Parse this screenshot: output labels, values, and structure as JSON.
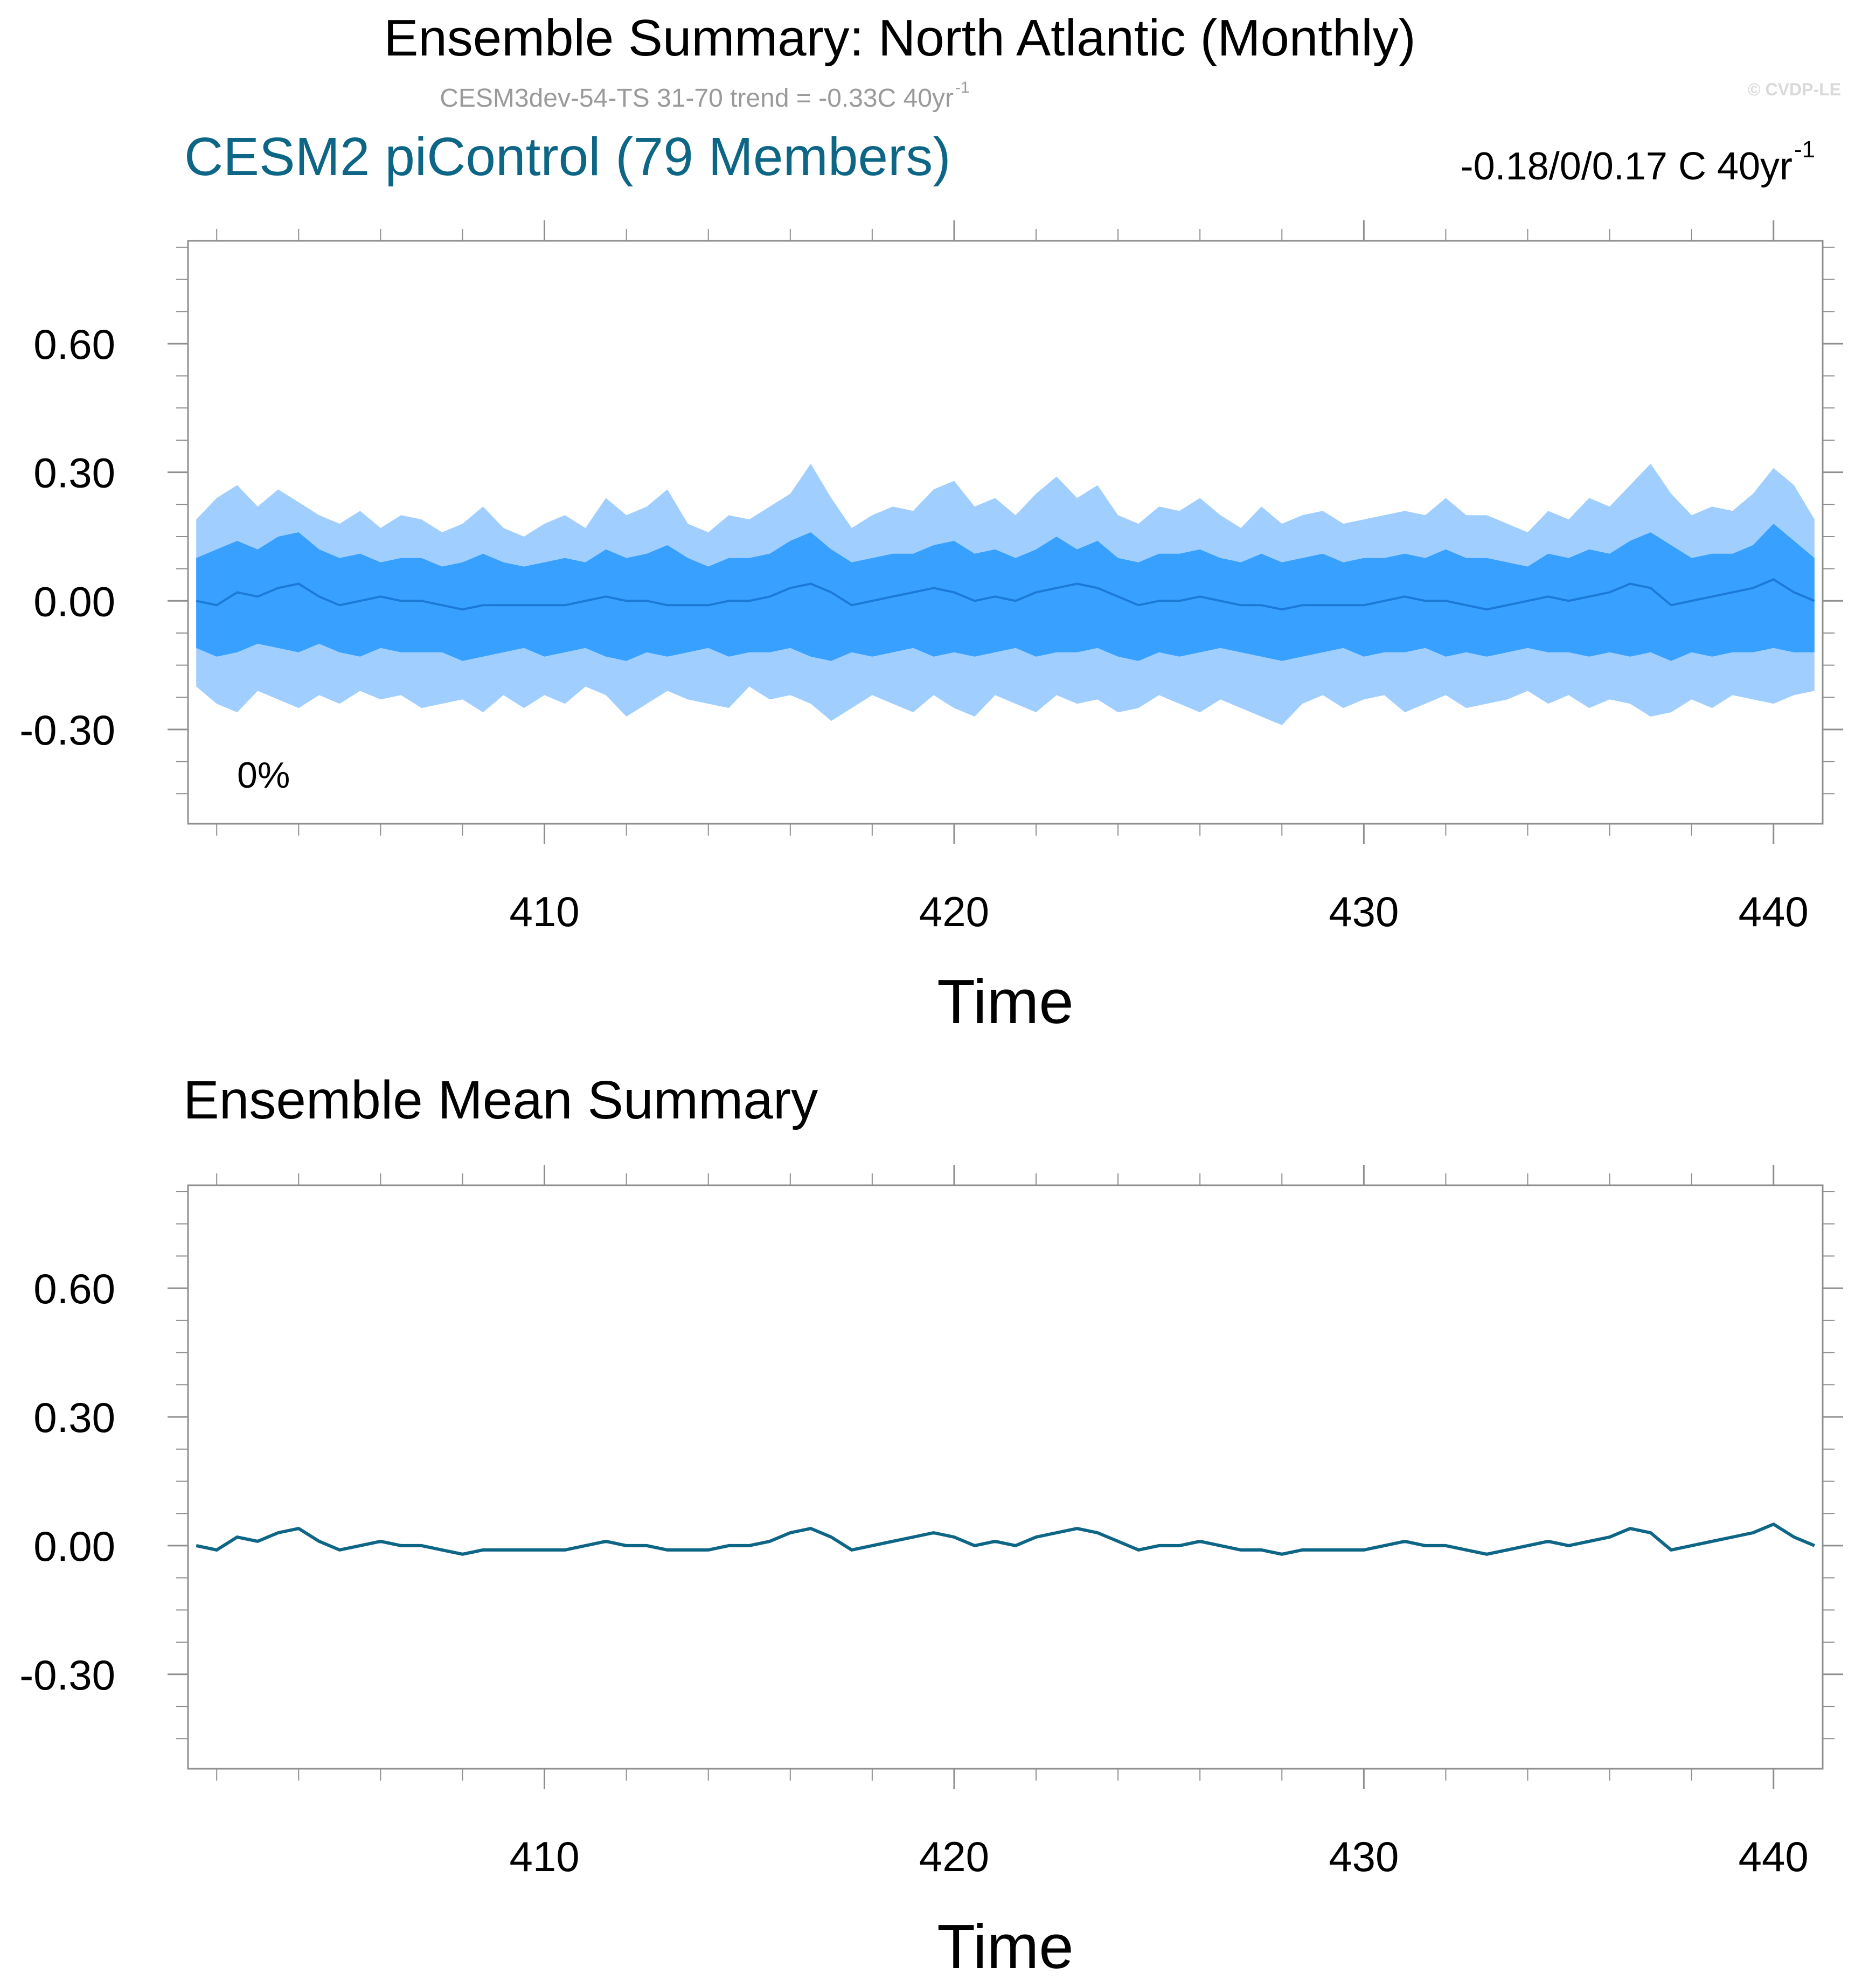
{
  "header": {
    "title": "Ensemble Summary: North Atlantic (Monthly)",
    "subtitle_main": "CESM3dev-54-TS 31-70 trend = -0.33C 40yr",
    "subtitle_sup": "-1",
    "watermark": "© CVDP-LE"
  },
  "panel_top": {
    "left_title": "CESM2 piControl (79 Members)",
    "right_title_main": "-0.18/0/0.17 C 40yr",
    "right_title_sup": "-1",
    "percent_label": "0%"
  },
  "panel_bottom": {
    "left_title": "Ensemble Mean Summary"
  },
  "colors": {
    "outer_band": "#a0cfff",
    "inner_band": "#38a0ff",
    "top_mean_line": "#1a7ad6",
    "mean_line": "#0e6686",
    "title_accent": "#0e6686",
    "subtitle_gray": "#9a9a9a",
    "axis": "#8f8f8f"
  },
  "chart_data": [
    {
      "type": "area",
      "title": "CESM2 piControl (79 Members)",
      "xlabel": "Time",
      "ylabel": "",
      "xlim": [
        401.3,
        441.2
      ],
      "ylim": [
        -0.52,
        0.84
      ],
      "xticks": [
        410,
        420,
        430,
        440
      ],
      "xtick_labels": [
        "410",
        "420",
        "430",
        "440"
      ],
      "yticks": [
        -0.3,
        0,
        0.3,
        0.6
      ],
      "ytick_labels": [
        "-0.30",
        "0.00",
        "0.30",
        "0.60"
      ],
      "grid": false,
      "x": [
        401.5,
        402,
        402.5,
        403,
        403.5,
        404,
        404.5,
        405,
        405.5,
        406,
        406.5,
        407,
        407.5,
        408,
        408.5,
        409,
        409.5,
        410,
        410.5,
        411,
        411.5,
        412,
        412.5,
        413,
        413.5,
        414,
        414.5,
        415,
        415.5,
        416,
        416.5,
        417,
        417.5,
        418,
        418.5,
        419,
        419.5,
        420,
        420.5,
        421,
        421.5,
        422,
        422.5,
        423,
        423.5,
        424,
        424.5,
        425,
        425.5,
        426,
        426.5,
        427,
        427.5,
        428,
        428.5,
        429,
        429.5,
        430,
        430.5,
        431,
        431.5,
        432,
        432.5,
        433,
        433.5,
        434,
        434.5,
        435,
        435.5,
        436,
        436.5,
        437,
        437.5,
        438,
        438.5,
        439,
        439.5,
        440,
        440.5,
        441
      ],
      "series": [
        {
          "role": "upper_outer",
          "values": [
            0.19,
            0.24,
            0.27,
            0.22,
            0.26,
            0.23,
            0.2,
            0.18,
            0.21,
            0.17,
            0.2,
            0.19,
            0.16,
            0.18,
            0.22,
            0.17,
            0.15,
            0.18,
            0.2,
            0.17,
            0.24,
            0.2,
            0.22,
            0.26,
            0.18,
            0.16,
            0.2,
            0.19,
            0.22,
            0.25,
            0.32,
            0.24,
            0.17,
            0.2,
            0.22,
            0.21,
            0.26,
            0.28,
            0.22,
            0.24,
            0.2,
            0.25,
            0.29,
            0.24,
            0.27,
            0.2,
            0.18,
            0.22,
            0.21,
            0.24,
            0.2,
            0.17,
            0.22,
            0.18,
            0.2,
            0.21,
            0.18,
            0.19,
            0.2,
            0.21,
            0.2,
            0.24,
            0.2,
            0.2,
            0.18,
            0.16,
            0.21,
            0.19,
            0.24,
            0.22,
            0.27,
            0.32,
            0.25,
            0.2,
            0.22,
            0.21,
            0.25,
            0.31,
            0.27,
            0.19
          ]
        },
        {
          "role": "upper_inner",
          "values": [
            0.1,
            0.12,
            0.14,
            0.12,
            0.15,
            0.16,
            0.12,
            0.1,
            0.11,
            0.09,
            0.1,
            0.1,
            0.08,
            0.09,
            0.11,
            0.09,
            0.08,
            0.09,
            0.1,
            0.09,
            0.12,
            0.1,
            0.11,
            0.13,
            0.1,
            0.08,
            0.1,
            0.1,
            0.11,
            0.14,
            0.16,
            0.12,
            0.09,
            0.1,
            0.11,
            0.11,
            0.13,
            0.14,
            0.11,
            0.12,
            0.1,
            0.12,
            0.15,
            0.12,
            0.14,
            0.1,
            0.09,
            0.11,
            0.11,
            0.12,
            0.1,
            0.09,
            0.11,
            0.09,
            0.1,
            0.11,
            0.09,
            0.1,
            0.1,
            0.11,
            0.1,
            0.12,
            0.1,
            0.1,
            0.09,
            0.08,
            0.11,
            0.1,
            0.12,
            0.11,
            0.14,
            0.16,
            0.13,
            0.1,
            0.11,
            0.11,
            0.13,
            0.18,
            0.14,
            0.1
          ]
        },
        {
          "role": "ensemble_mean",
          "values": [
            0.0,
            -0.01,
            0.02,
            0.01,
            0.03,
            0.04,
            0.01,
            -0.01,
            0.0,
            0.01,
            0.0,
            0.0,
            -0.01,
            -0.02,
            -0.01,
            -0.01,
            -0.01,
            -0.01,
            -0.01,
            0.0,
            0.01,
            0.0,
            0.0,
            -0.01,
            -0.01,
            -0.01,
            0.0,
            0.0,
            0.01,
            0.03,
            0.04,
            0.02,
            -0.01,
            0.0,
            0.01,
            0.02,
            0.03,
            0.02,
            0.0,
            0.01,
            0.0,
            0.02,
            0.03,
            0.04,
            0.03,
            0.01,
            -0.01,
            0.0,
            0.0,
            0.01,
            0.0,
            -0.01,
            -0.01,
            -0.02,
            -0.01,
            -0.01,
            -0.01,
            -0.01,
            0.0,
            0.01,
            0.0,
            0.0,
            -0.01,
            -0.02,
            -0.01,
            0.0,
            0.01,
            0.0,
            0.01,
            0.02,
            0.04,
            0.03,
            -0.01,
            0.0,
            0.01,
            0.02,
            0.03,
            0.05,
            0.02,
            0.0
          ]
        },
        {
          "role": "lower_inner",
          "values": [
            -0.11,
            -0.13,
            -0.12,
            -0.1,
            -0.11,
            -0.12,
            -0.1,
            -0.12,
            -0.13,
            -0.11,
            -0.12,
            -0.12,
            -0.12,
            -0.14,
            -0.13,
            -0.12,
            -0.11,
            -0.13,
            -0.12,
            -0.11,
            -0.13,
            -0.14,
            -0.12,
            -0.13,
            -0.12,
            -0.11,
            -0.13,
            -0.12,
            -0.12,
            -0.11,
            -0.13,
            -0.14,
            -0.12,
            -0.13,
            -0.12,
            -0.11,
            -0.13,
            -0.12,
            -0.13,
            -0.12,
            -0.11,
            -0.13,
            -0.12,
            -0.12,
            -0.11,
            -0.13,
            -0.14,
            -0.12,
            -0.13,
            -0.12,
            -0.11,
            -0.12,
            -0.13,
            -0.14,
            -0.13,
            -0.12,
            -0.11,
            -0.13,
            -0.12,
            -0.12,
            -0.11,
            -0.13,
            -0.12,
            -0.13,
            -0.12,
            -0.11,
            -0.12,
            -0.12,
            -0.13,
            -0.12,
            -0.13,
            -0.12,
            -0.14,
            -0.12,
            -0.13,
            -0.12,
            -0.12,
            -0.11,
            -0.12,
            -0.12
          ]
        },
        {
          "role": "lower_outer",
          "values": [
            -0.2,
            -0.24,
            -0.26,
            -0.21,
            -0.23,
            -0.25,
            -0.22,
            -0.24,
            -0.21,
            -0.23,
            -0.22,
            -0.25,
            -0.24,
            -0.23,
            -0.26,
            -0.22,
            -0.25,
            -0.22,
            -0.24,
            -0.2,
            -0.22,
            -0.27,
            -0.24,
            -0.21,
            -0.23,
            -0.24,
            -0.25,
            -0.2,
            -0.23,
            -0.22,
            -0.24,
            -0.28,
            -0.25,
            -0.22,
            -0.24,
            -0.26,
            -0.22,
            -0.25,
            -0.27,
            -0.22,
            -0.24,
            -0.26,
            -0.22,
            -0.24,
            -0.23,
            -0.26,
            -0.25,
            -0.22,
            -0.24,
            -0.26,
            -0.23,
            -0.25,
            -0.27,
            -0.29,
            -0.24,
            -0.22,
            -0.25,
            -0.23,
            -0.22,
            -0.26,
            -0.24,
            -0.22,
            -0.25,
            -0.24,
            -0.23,
            -0.21,
            -0.24,
            -0.22,
            -0.25,
            -0.23,
            -0.24,
            -0.27,
            -0.26,
            -0.23,
            -0.25,
            -0.22,
            -0.23,
            -0.24,
            -0.22,
            -0.21
          ]
        }
      ]
    },
    {
      "type": "line",
      "title": "Ensemble Mean Summary",
      "xlabel": "Time",
      "ylabel": "",
      "xlim": [
        401.3,
        441.2
      ],
      "ylim": [
        -0.52,
        0.84
      ],
      "xticks": [
        410,
        420,
        430,
        440
      ],
      "xtick_labels": [
        "410",
        "420",
        "430",
        "440"
      ],
      "yticks": [
        -0.3,
        0,
        0.3,
        0.6
      ],
      "ytick_labels": [
        "-0.30",
        "0.00",
        "0.30",
        "0.60"
      ],
      "grid": false,
      "x": [
        401.5,
        402,
        402.5,
        403,
        403.5,
        404,
        404.5,
        405,
        405.5,
        406,
        406.5,
        407,
        407.5,
        408,
        408.5,
        409,
        409.5,
        410,
        410.5,
        411,
        411.5,
        412,
        412.5,
        413,
        413.5,
        414,
        414.5,
        415,
        415.5,
        416,
        416.5,
        417,
        417.5,
        418,
        418.5,
        419,
        419.5,
        420,
        420.5,
        421,
        421.5,
        422,
        422.5,
        423,
        423.5,
        424,
        424.5,
        425,
        425.5,
        426,
        426.5,
        427,
        427.5,
        428,
        428.5,
        429,
        429.5,
        430,
        430.5,
        431,
        431.5,
        432,
        432.5,
        433,
        433.5,
        434,
        434.5,
        435,
        435.5,
        436,
        436.5,
        437,
        437.5,
        438,
        438.5,
        439,
        439.5,
        440,
        440.5,
        441
      ],
      "series": [
        {
          "role": "ensemble_mean",
          "values": [
            0.0,
            -0.01,
            0.02,
            0.01,
            0.03,
            0.04,
            0.01,
            -0.01,
            0.0,
            0.01,
            0.0,
            0.0,
            -0.01,
            -0.02,
            -0.01,
            -0.01,
            -0.01,
            -0.01,
            -0.01,
            0.0,
            0.01,
            0.0,
            0.0,
            -0.01,
            -0.01,
            -0.01,
            0.0,
            0.0,
            0.01,
            0.03,
            0.04,
            0.02,
            -0.01,
            0.0,
            0.01,
            0.02,
            0.03,
            0.02,
            0.0,
            0.01,
            0.0,
            0.02,
            0.03,
            0.04,
            0.03,
            0.01,
            -0.01,
            0.0,
            0.0,
            0.01,
            0.0,
            -0.01,
            -0.01,
            -0.02,
            -0.01,
            -0.01,
            -0.01,
            -0.01,
            0.0,
            0.01,
            0.0,
            0.0,
            -0.01,
            -0.02,
            -0.01,
            0.0,
            0.01,
            0.0,
            0.01,
            0.02,
            0.04,
            0.03,
            -0.01,
            0.0,
            0.01,
            0.02,
            0.03,
            0.05,
            0.02,
            0.0
          ]
        }
      ]
    }
  ]
}
